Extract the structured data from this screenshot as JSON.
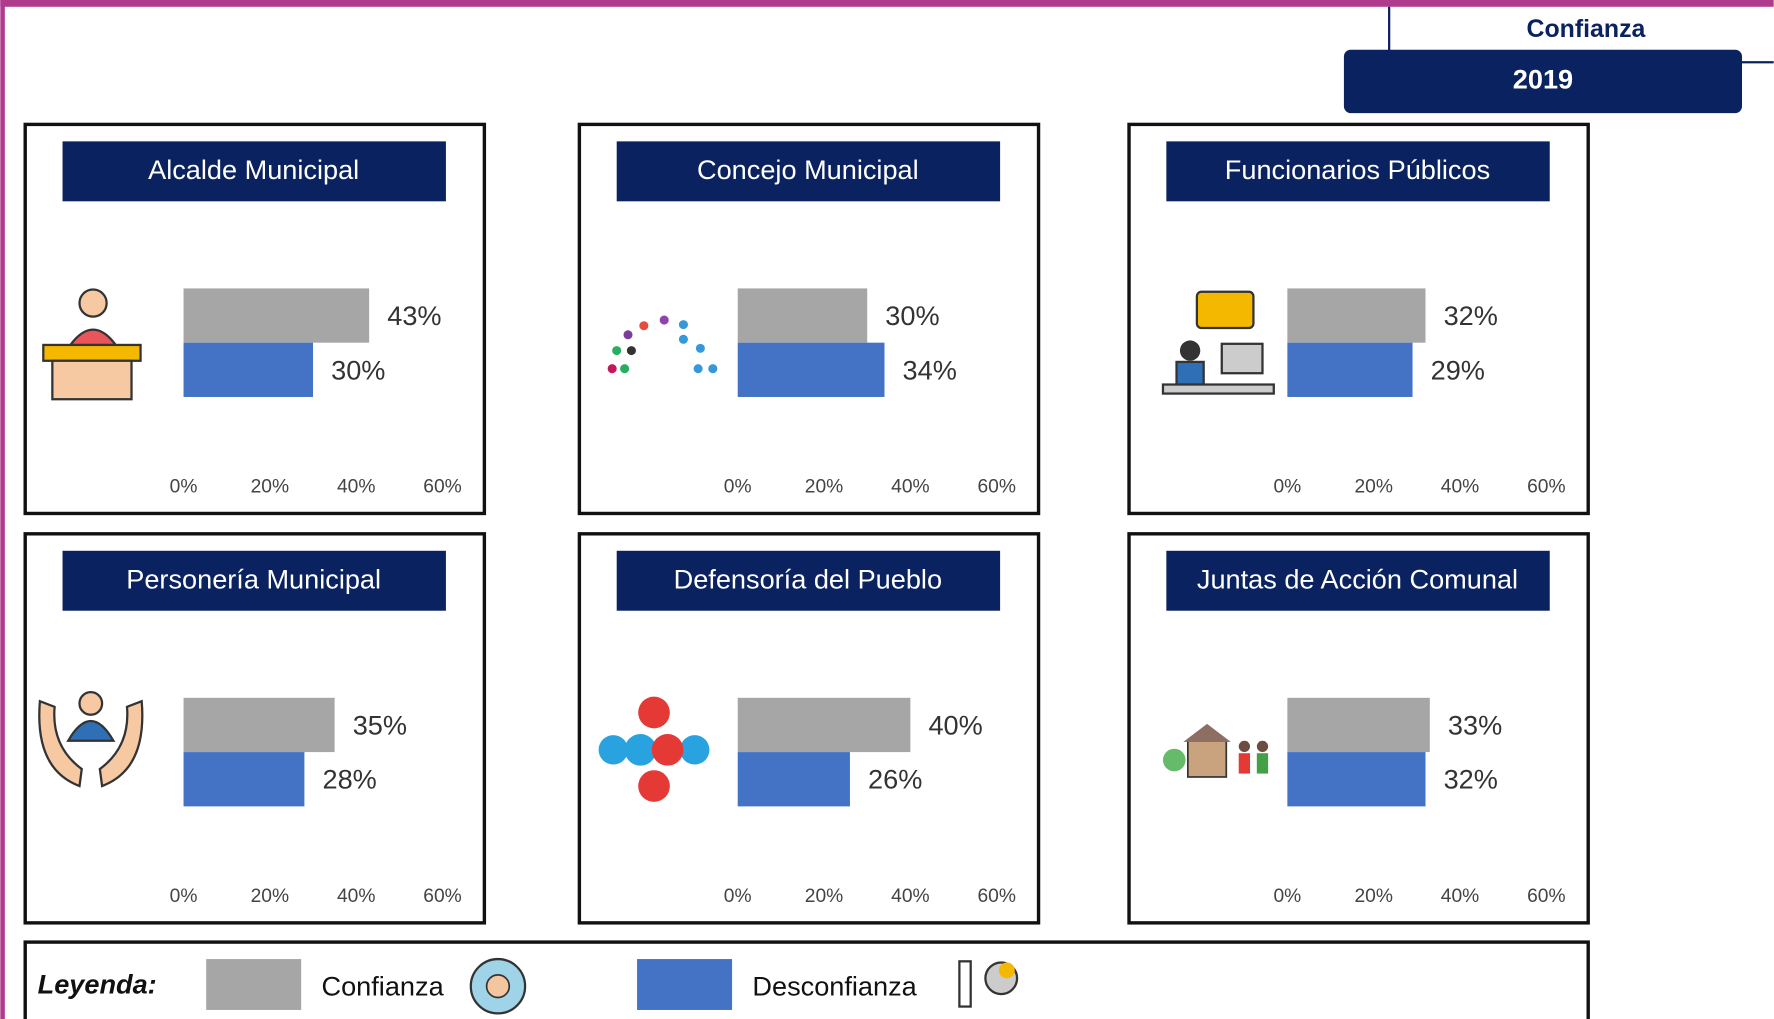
{
  "header": {
    "label": "Confianza",
    "year": "2019"
  },
  "legend_title": "Leyenda:",
  "chart_data": [
    {
      "type": "bar",
      "orientation": "horizontal",
      "title": "Alcalde Municipal",
      "xlim": [
        0,
        60
      ],
      "xticks": [
        {
          "value": 0,
          "label": "0%"
        },
        {
          "value": 20,
          "label": "20%"
        },
        {
          "value": 40,
          "label": "40%"
        },
        {
          "value": 60,
          "label": "60%"
        }
      ],
      "grid": false,
      "series": [
        {
          "name": "Confianza",
          "color": "#a6a6a6",
          "values": [
            43
          ],
          "value_labels": [
            "43%"
          ]
        },
        {
          "name": "Desconfianza",
          "color": "#4472c4",
          "values": [
            30
          ],
          "value_labels": [
            "30%"
          ]
        }
      ]
    },
    {
      "type": "bar",
      "orientation": "horizontal",
      "title": "Concejo Municipal",
      "xlim": [
        0,
        60
      ],
      "xticks": [
        {
          "value": 0,
          "label": "0%"
        },
        {
          "value": 20,
          "label": "20%"
        },
        {
          "value": 40,
          "label": "40%"
        },
        {
          "value": 60,
          "label": "60%"
        }
      ],
      "grid": false,
      "series": [
        {
          "name": "Confianza",
          "color": "#a6a6a6",
          "values": [
            30
          ],
          "value_labels": [
            "30%"
          ]
        },
        {
          "name": "Desconfianza",
          "color": "#4472c4",
          "values": [
            34
          ],
          "value_labels": [
            "34%"
          ]
        }
      ]
    },
    {
      "type": "bar",
      "orientation": "horizontal",
      "title": "Funcionarios Públicos",
      "xlim": [
        0,
        60
      ],
      "xticks": [
        {
          "value": 0,
          "label": "0%"
        },
        {
          "value": 20,
          "label": "20%"
        },
        {
          "value": 40,
          "label": "40%"
        },
        {
          "value": 60,
          "label": "60%"
        }
      ],
      "grid": false,
      "series": [
        {
          "name": "Confianza",
          "color": "#a6a6a6",
          "values": [
            32
          ],
          "value_labels": [
            "32%"
          ]
        },
        {
          "name": "Desconfianza",
          "color": "#4472c4",
          "values": [
            29
          ],
          "value_labels": [
            "29%"
          ]
        }
      ]
    },
    {
      "type": "bar",
      "orientation": "horizontal",
      "title": "Personería Municipal",
      "xlim": [
        0,
        60
      ],
      "xticks": [
        {
          "value": 0,
          "label": "0%"
        },
        {
          "value": 20,
          "label": "20%"
        },
        {
          "value": 40,
          "label": "40%"
        },
        {
          "value": 60,
          "label": "60%"
        }
      ],
      "grid": false,
      "series": [
        {
          "name": "Confianza",
          "color": "#a6a6a6",
          "values": [
            35
          ],
          "value_labels": [
            "35%"
          ]
        },
        {
          "name": "Desconfianza",
          "color": "#4472c4",
          "values": [
            28
          ],
          "value_labels": [
            "28%"
          ]
        }
      ]
    },
    {
      "type": "bar",
      "orientation": "horizontal",
      "title": "Defensoría del Pueblo",
      "xlim": [
        0,
        60
      ],
      "xticks": [
        {
          "value": 0,
          "label": "0%"
        },
        {
          "value": 20,
          "label": "20%"
        },
        {
          "value": 40,
          "label": "40%"
        },
        {
          "value": 60,
          "label": "60%"
        }
      ],
      "grid": false,
      "series": [
        {
          "name": "Confianza",
          "color": "#a6a6a6",
          "values": [
            40
          ],
          "value_labels": [
            "40%"
          ]
        },
        {
          "name": "Desconfianza",
          "color": "#4472c4",
          "values": [
            26
          ],
          "value_labels": [
            "26%"
          ]
        }
      ]
    },
    {
      "type": "bar",
      "orientation": "horizontal",
      "title": "Juntas de Acción Comunal",
      "xlim": [
        0,
        60
      ],
      "xticks": [
        {
          "value": 0,
          "label": "0%"
        },
        {
          "value": 20,
          "label": "20%"
        },
        {
          "value": 40,
          "label": "40%"
        },
        {
          "value": 60,
          "label": "60%"
        }
      ],
      "grid": false,
      "series": [
        {
          "name": "Confianza",
          "color": "#a6a6a6",
          "values": [
            33
          ],
          "value_labels": [
            "33%"
          ]
        },
        {
          "name": "Desconfianza",
          "color": "#4472c4",
          "values": [
            32
          ],
          "value_labels": [
            "32%"
          ]
        }
      ]
    }
  ]
}
